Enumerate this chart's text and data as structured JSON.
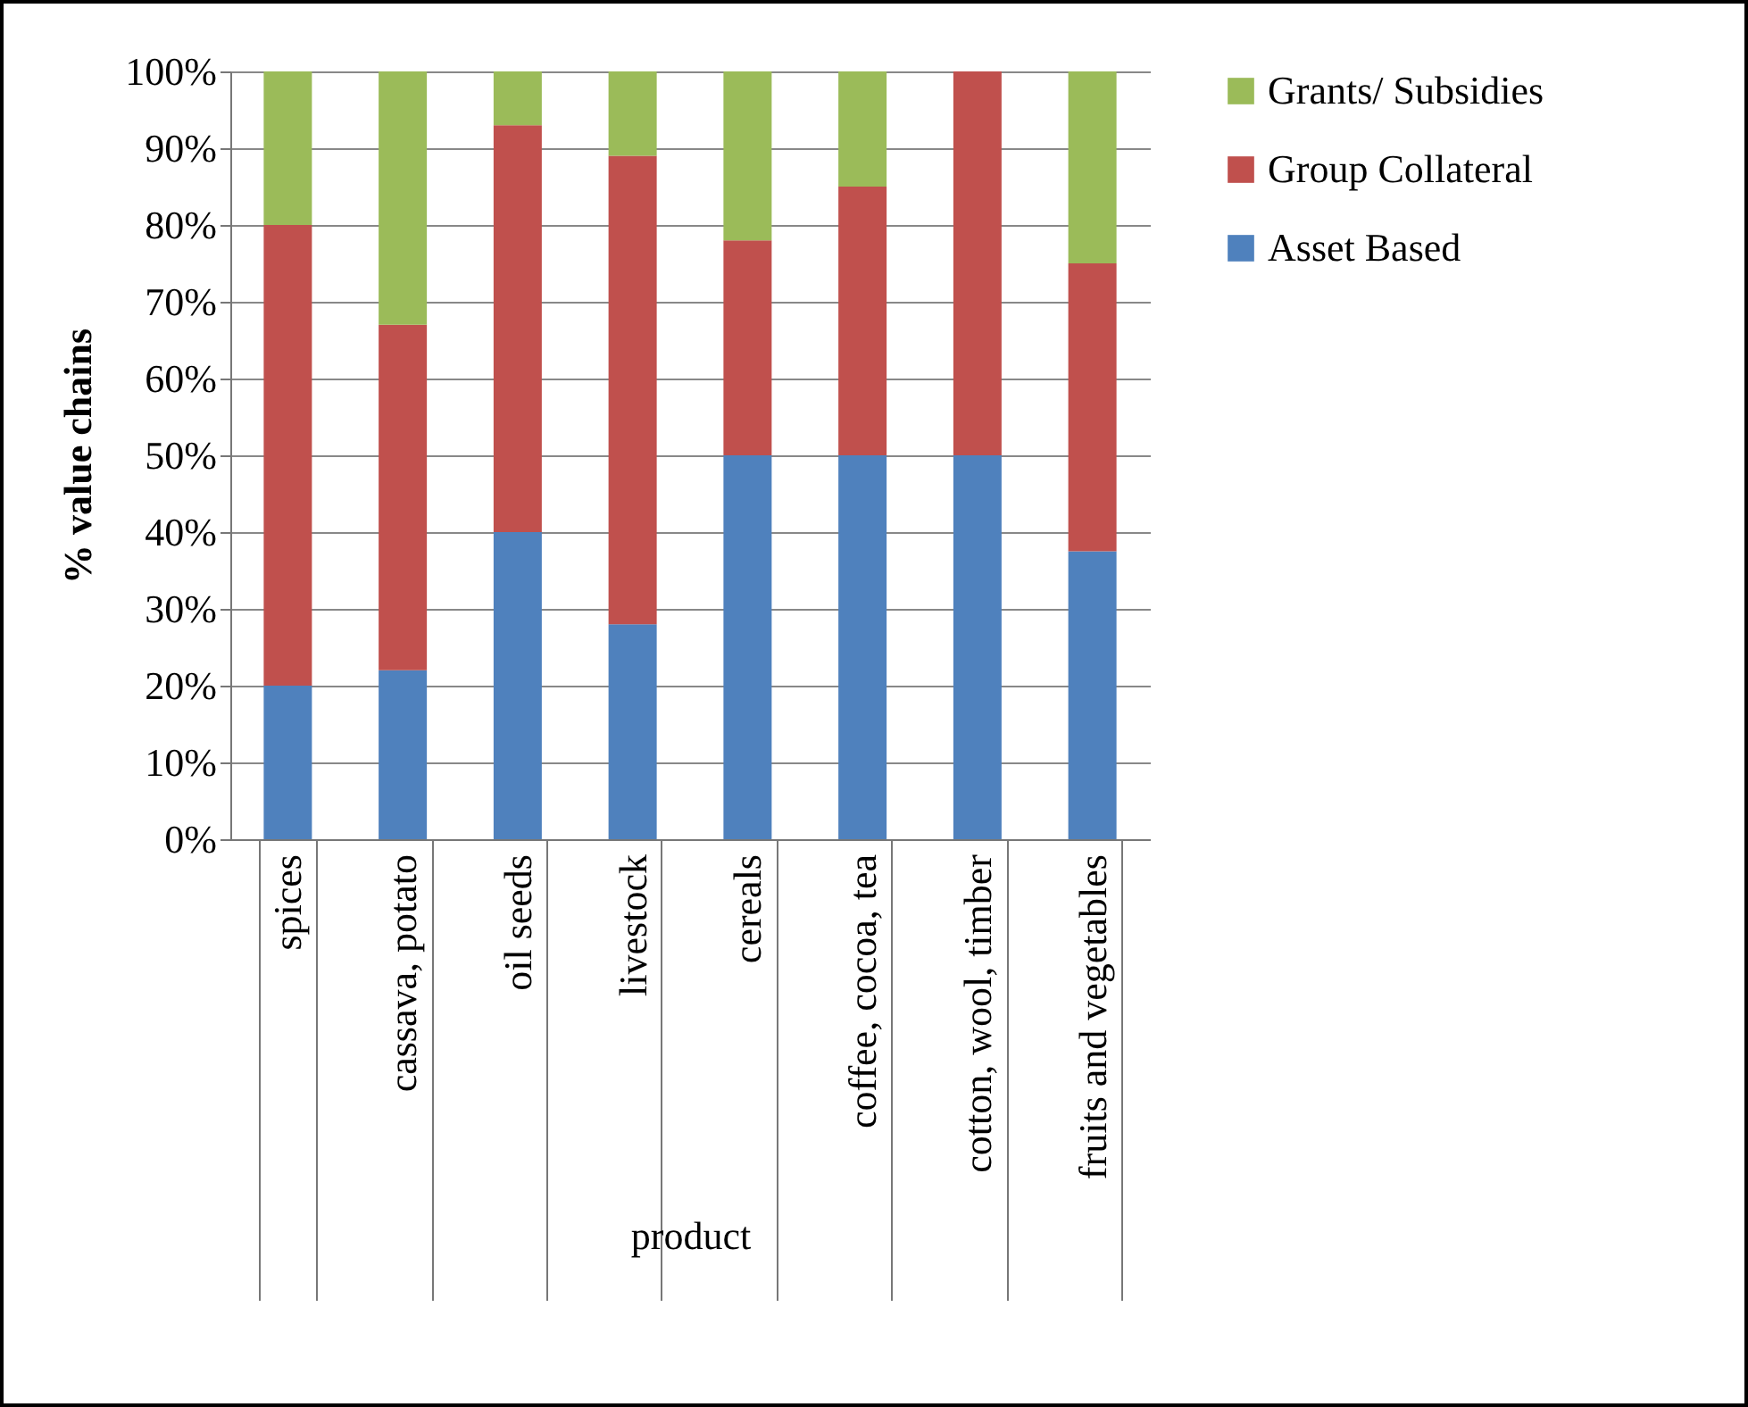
{
  "chart_data": {
    "type": "bar",
    "stacked": true,
    "ylabel": "% value chains",
    "xlabel": "product",
    "categories": [
      "spices",
      "cassava, potato",
      "oil seeds",
      "livestock",
      "cereals",
      "coffee, cocoa, tea",
      "cotton, wool, timber",
      "fruits and vegetables"
    ],
    "series": [
      {
        "name": "Asset Based",
        "color": "#4f81bd",
        "values": [
          20,
          22,
          40,
          28,
          50,
          50,
          50,
          37.5
        ]
      },
      {
        "name": "Group Collateral",
        "color": "#c0504d",
        "values": [
          60,
          45,
          53,
          61,
          28,
          35,
          50,
          37.5
        ]
      },
      {
        "name": "Grants/ Subsidies",
        "color": "#9bbb59",
        "values": [
          20,
          33,
          7,
          11,
          22,
          15,
          0,
          25
        ]
      }
    ],
    "ylim": [
      0,
      100
    ],
    "yticks": [
      {
        "value": 0,
        "label": "0%"
      },
      {
        "value": 10,
        "label": "10%"
      },
      {
        "value": 20,
        "label": "20%"
      },
      {
        "value": 30,
        "label": "30%"
      },
      {
        "value": 40,
        "label": "40%"
      },
      {
        "value": 50,
        "label": "50%"
      },
      {
        "value": 60,
        "label": "60%"
      },
      {
        "value": 70,
        "label": "70%"
      },
      {
        "value": 80,
        "label": "80%"
      },
      {
        "value": 90,
        "label": "90%"
      },
      {
        "value": 100,
        "label": "100%"
      }
    ],
    "grid": "y",
    "legend": "right"
  }
}
